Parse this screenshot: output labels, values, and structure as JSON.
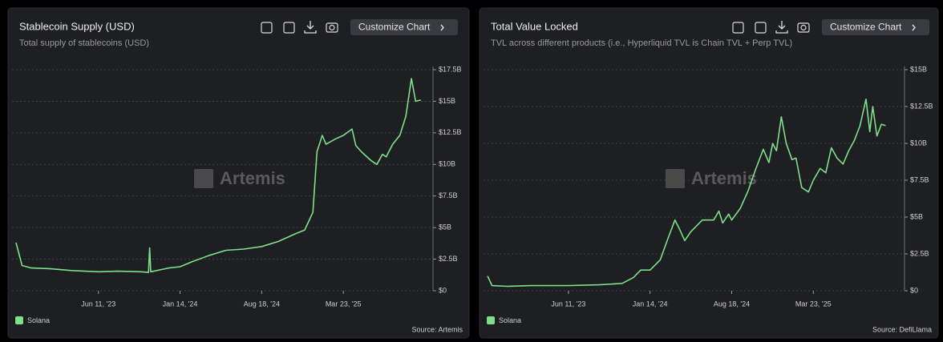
{
  "chart_data": [
    {
      "type": "line",
      "title": "Stablecoin Supply (USD)",
      "subtitle": "Total supply of stablecoins (USD)",
      "button": "Customize Chart",
      "watermark": "Artemis",
      "source": "Source: Artemis",
      "x": [
        "2022-11-04",
        "2022-11-20",
        "2022-12-15",
        "2023-02-01",
        "2023-04-01",
        "2023-06-11",
        "2023-08-01",
        "2023-10-01",
        "2023-10-22",
        "2023-10-25",
        "2023-10-28",
        "2023-12-15",
        "2024-01-14",
        "2024-02-15",
        "2024-04-01",
        "2024-05-15",
        "2024-07-01",
        "2024-08-18",
        "2024-10-01",
        "2024-11-15",
        "2024-12-10",
        "2025-01-01",
        "2025-01-12",
        "2025-01-26",
        "2025-02-05",
        "2025-03-01",
        "2025-03-23",
        "2025-04-15",
        "2025-04-25",
        "2025-05-10",
        "2025-06-05",
        "2025-06-20",
        "2025-07-05",
        "2025-07-15",
        "2025-08-01",
        "2025-08-20",
        "2025-09-05",
        "2025-09-20",
        "2025-10-01",
        "2025-10-15"
      ],
      "series": [
        {
          "name": "Solana",
          "color": "#7ee08a",
          "values": [
            3.8,
            2.0,
            1.8,
            1.75,
            1.6,
            1.5,
            1.55,
            1.5,
            1.45,
            3.4,
            1.5,
            1.8,
            1.9,
            2.3,
            2.8,
            3.2,
            3.3,
            3.5,
            3.9,
            4.5,
            4.8,
            6.2,
            11.0,
            12.3,
            11.6,
            12.0,
            12.3,
            12.8,
            11.5,
            11.0,
            10.3,
            10.0,
            10.8,
            10.6,
            11.6,
            12.3,
            13.8,
            16.8,
            15.0,
            15.1
          ]
        }
      ],
      "xlim": [
        "2022-11-04",
        "2025-10-26"
      ],
      "xticks": [
        {
          "value": "2023-06-11",
          "label": "Jun 11, '23"
        },
        {
          "value": "2024-01-14",
          "label": "Jan 14, '24"
        },
        {
          "value": "2024-08-18",
          "label": "Aug 18, '24"
        },
        {
          "value": "2025-03-23",
          "label": "Mar 23, '25"
        }
      ],
      "ylim": [
        0,
        17.5
      ],
      "yticks": [
        {
          "value": 0,
          "label": "$0"
        },
        {
          "value": 2.5,
          "label": "$2.5B"
        },
        {
          "value": 5,
          "label": "$5B"
        },
        {
          "value": 7.5,
          "label": "$7.5B"
        },
        {
          "value": 10,
          "label": "$10B"
        },
        {
          "value": 12.5,
          "label": "$12.5B"
        },
        {
          "value": 15,
          "label": "$15B"
        },
        {
          "value": 17.5,
          "label": "$17.5B"
        }
      ],
      "grid": true
    },
    {
      "type": "line",
      "title": "Total Value Locked",
      "subtitle": "TVL across different products (i.e., Hyperliquid TVL is Chain TVL + Perp TVL)",
      "button": "Customize Chart",
      "watermark": "Artemis",
      "source": "Source: DefiLlama",
      "x": [
        "2022-11-08",
        "2022-11-20",
        "2023-01-01",
        "2023-03-01",
        "2023-06-11",
        "2023-09-01",
        "2023-11-01",
        "2023-12-01",
        "2023-12-20",
        "2024-01-14",
        "2024-02-10",
        "2024-03-01",
        "2024-03-20",
        "2024-04-01",
        "2024-04-15",
        "2024-05-01",
        "2024-06-01",
        "2024-07-01",
        "2024-07-15",
        "2024-07-25",
        "2024-08-10",
        "2024-08-18",
        "2024-09-10",
        "2024-10-01",
        "2024-10-20",
        "2024-11-10",
        "2024-11-25",
        "2024-12-05",
        "2024-12-15",
        "2024-12-28",
        "2025-01-10",
        "2025-01-25",
        "2025-02-05",
        "2025-02-20",
        "2025-03-10",
        "2025-03-23",
        "2025-04-10",
        "2025-04-25",
        "2025-05-10",
        "2025-05-25",
        "2025-06-10",
        "2025-06-25",
        "2025-07-10",
        "2025-07-25",
        "2025-08-10",
        "2025-08-20",
        "2025-08-28",
        "2025-09-08",
        "2025-09-20",
        "2025-10-01"
      ],
      "series": [
        {
          "name": "Solana",
          "color": "#7ee08a",
          "values": [
            1.0,
            0.35,
            0.3,
            0.35,
            0.35,
            0.4,
            0.5,
            0.9,
            1.4,
            1.4,
            2.1,
            3.5,
            4.8,
            4.2,
            3.4,
            4.0,
            4.8,
            4.8,
            5.4,
            4.6,
            5.2,
            4.8,
            5.6,
            6.8,
            8.2,
            9.6,
            8.7,
            10.0,
            9.5,
            11.8,
            10.0,
            8.9,
            9.0,
            7.0,
            6.7,
            7.5,
            8.3,
            8.0,
            9.7,
            9.0,
            8.6,
            9.5,
            10.2,
            11.2,
            13.0,
            10.8,
            12.5,
            10.5,
            11.3,
            11.2
          ]
        }
      ],
      "xlim": [
        "2022-11-08",
        "2025-10-30"
      ],
      "xticks": [
        {
          "value": "2023-06-11",
          "label": "Jun 11, '23"
        },
        {
          "value": "2024-01-14",
          "label": "Jan 14, '24"
        },
        {
          "value": "2024-08-18",
          "label": "Aug 18, '24"
        },
        {
          "value": "2025-03-23",
          "label": "Mar 23, '25"
        }
      ],
      "ylim": [
        0,
        15
      ],
      "yticks": [
        {
          "value": 0,
          "label": "$0"
        },
        {
          "value": 2.5,
          "label": "$2.5B"
        },
        {
          "value": 5,
          "label": "$5B"
        },
        {
          "value": 7.5,
          "label": "$7.5B"
        },
        {
          "value": 10,
          "label": "$10B"
        },
        {
          "value": 12.5,
          "label": "$12.5B"
        },
        {
          "value": 15,
          "label": "$15B"
        }
      ],
      "grid": true
    }
  ]
}
